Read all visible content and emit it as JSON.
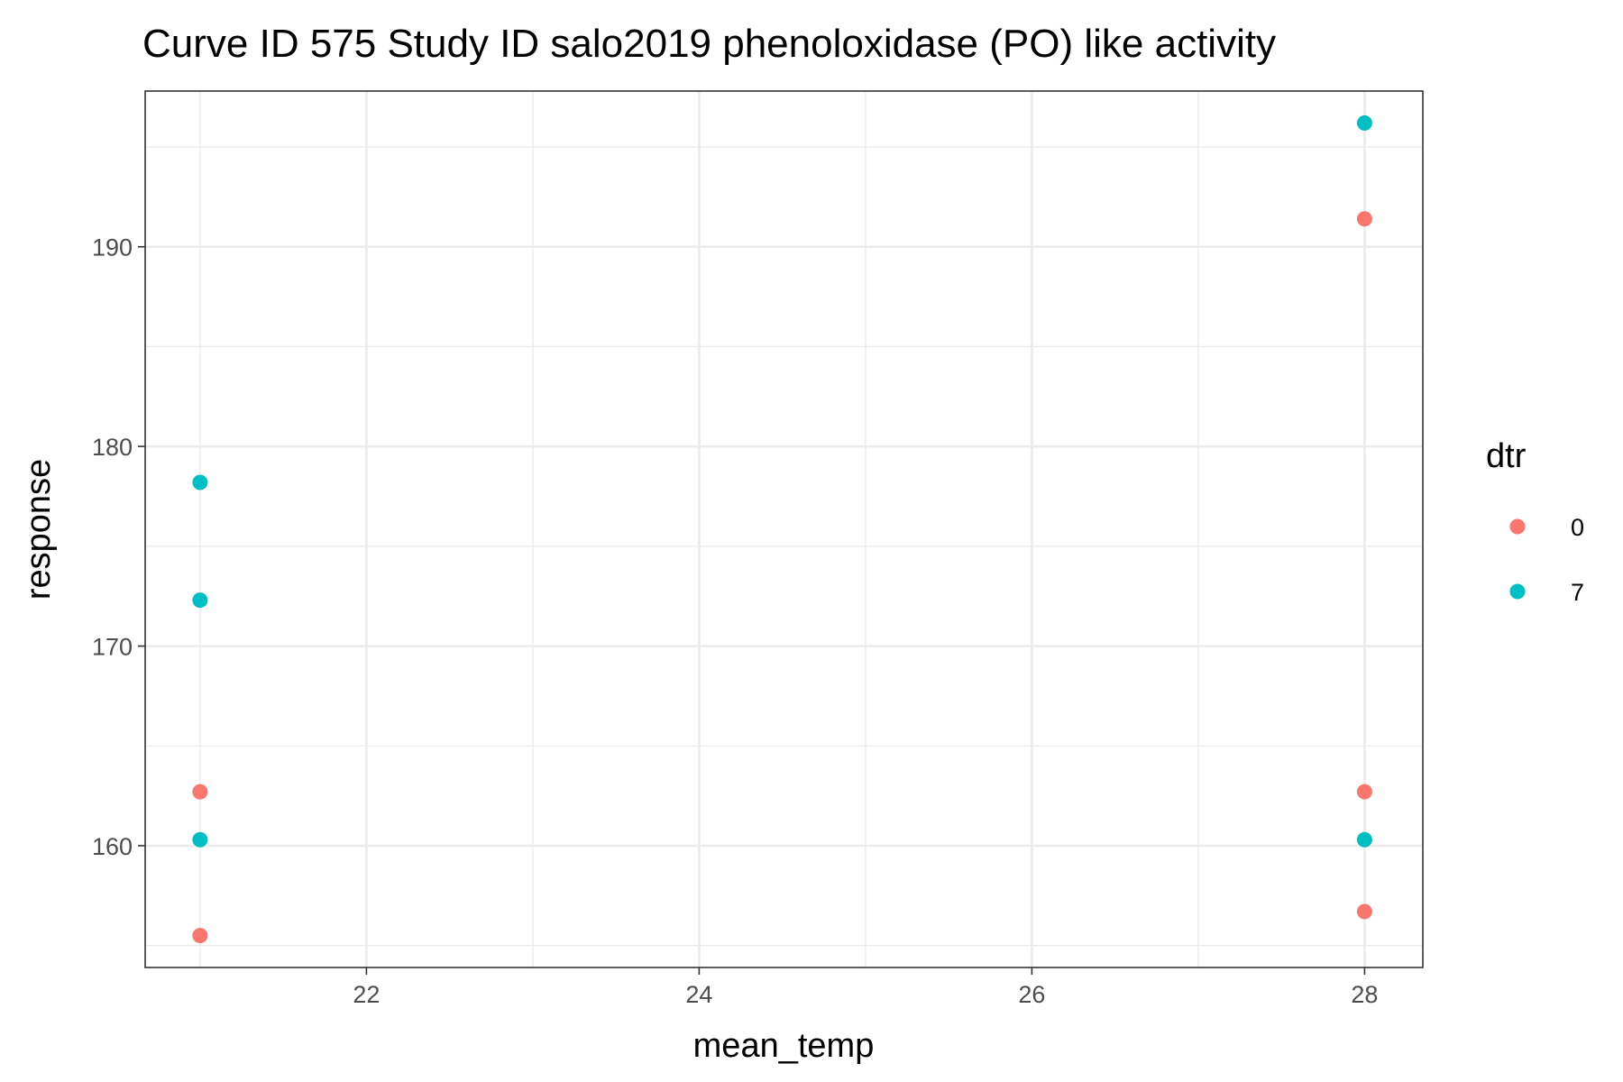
{
  "chart_data": {
    "type": "scatter",
    "title": "Curve ID 575 Study ID salo2019 phenoloxidase (PO) like activity",
    "xlabel": "mean_temp",
    "ylabel": "response",
    "xlim": [
      20.67,
      28.35
    ],
    "ylim": [
      153.9,
      197.8
    ],
    "x_ticks": [
      22,
      24,
      26,
      28
    ],
    "x_tick_labels": [
      "22",
      "24",
      "26",
      "28"
    ],
    "y_ticks": [
      160,
      170,
      180,
      190
    ],
    "y_tick_labels": [
      "160",
      "170",
      "180",
      "190"
    ],
    "grid": true,
    "legend": {
      "title": "dtr",
      "position": "right"
    },
    "series": [
      {
        "name": "0",
        "color": "#F8766D",
        "points": [
          {
            "x": 21,
            "y": 162.7
          },
          {
            "x": 21,
            "y": 155.5
          },
          {
            "x": 28,
            "y": 191.4
          },
          {
            "x": 28,
            "y": 162.7
          },
          {
            "x": 28,
            "y": 156.7
          }
        ]
      },
      {
        "name": "7",
        "color": "#00BFC4",
        "points": [
          {
            "x": 21,
            "y": 178.2
          },
          {
            "x": 21,
            "y": 172.3
          },
          {
            "x": 21,
            "y": 160.3
          },
          {
            "x": 28,
            "y": 196.2
          },
          {
            "x": 28,
            "y": 160.3
          }
        ]
      }
    ]
  }
}
